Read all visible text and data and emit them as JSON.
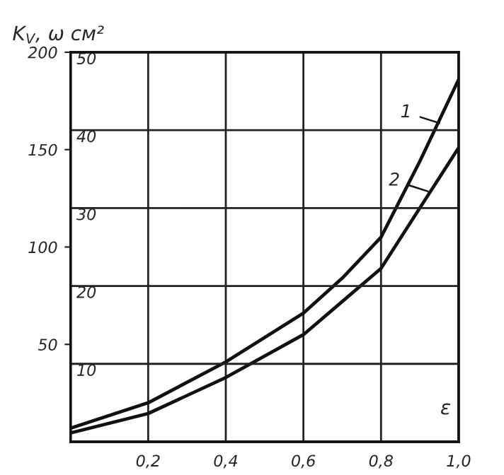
{
  "chart_data": {
    "type": "line",
    "x": [
      0,
      0.2,
      0.4,
      0.6,
      0.7,
      0.8,
      0.9,
      1.0
    ],
    "series": [
      {
        "color": "#111111",
        "values": [
          7,
          20,
          41,
          66,
          84,
          105,
          144,
          186
        ]
      },
      {
        "color": "#111111",
        "values": [
          4.5,
          14.5,
          33,
          55,
          72,
          89,
          120,
          151
        ]
      }
    ],
    "xlabel": "ε",
    "ylabel": "K$_{V}$, ω см²",
    "annotations": [
      {
        "text": "1",
        "x": 0.96,
        "y": 163
      },
      {
        "text": "2",
        "x": 0.93,
        "y": 128
      }
    ],
    "xlim": [
      0,
      1.0
    ],
    "xticks": [
      {
        "value": 0.2,
        "label": "0,2"
      },
      {
        "value": 0.4,
        "label": "0,4"
      },
      {
        "value": 0.6,
        "label": "0,6"
      },
      {
        "value": 0.8,
        "label": "0,8"
      },
      {
        "value": 1.0,
        "label": "1,0"
      }
    ],
    "ylim": [
      0,
      200
    ],
    "yticks": [
      50,
      100,
      150,
      200
    ],
    "y2lim": [
      0,
      50
    ],
    "y2ticks": [
      10,
      20,
      30,
      40,
      50
    ],
    "grid": true,
    "line_style": "solid",
    "marker": "none"
  }
}
